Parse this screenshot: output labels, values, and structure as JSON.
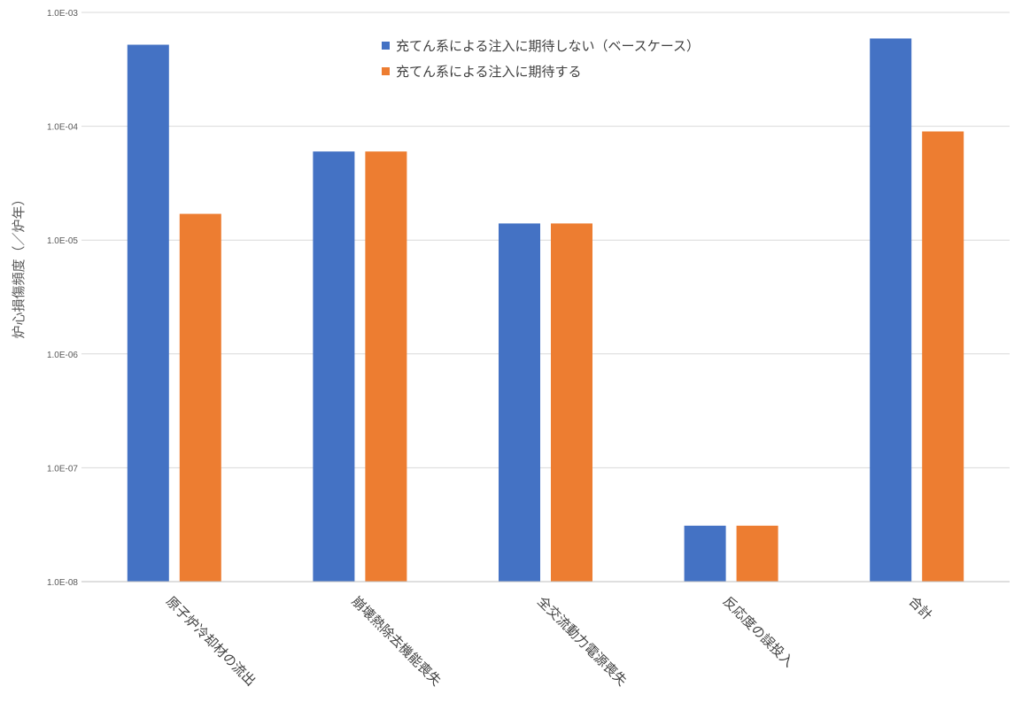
{
  "chart_data": {
    "type": "bar",
    "yscale": "log",
    "ylim": [
      1e-08,
      0.001
    ],
    "ylabel": "炉心損傷頻度（／炉年）",
    "yticks": [
      "1.0E-08",
      "1.0E-07",
      "1.0E-06",
      "1.0E-05",
      "1.0E-04",
      "1.0E-03"
    ],
    "categories": [
      "原子炉冷却材の流出",
      "崩壊熱除去機能喪失",
      "全交流動力電源喪失",
      "反応度の誤投入",
      "合計"
    ],
    "series": [
      {
        "name": "充てん系による注入に期待しない（ベースケース）",
        "color": "#4472C4",
        "values": [
          0.00052,
          6e-05,
          1.4e-05,
          3.1e-08,
          0.00059
        ]
      },
      {
        "name": "充てん系による注入に期待する",
        "color": "#ED7D31",
        "values": [
          1.7e-05,
          6e-05,
          1.4e-05,
          3.1e-08,
          9e-05
        ]
      }
    ],
    "grid": true,
    "legend_position": "top-center"
  }
}
